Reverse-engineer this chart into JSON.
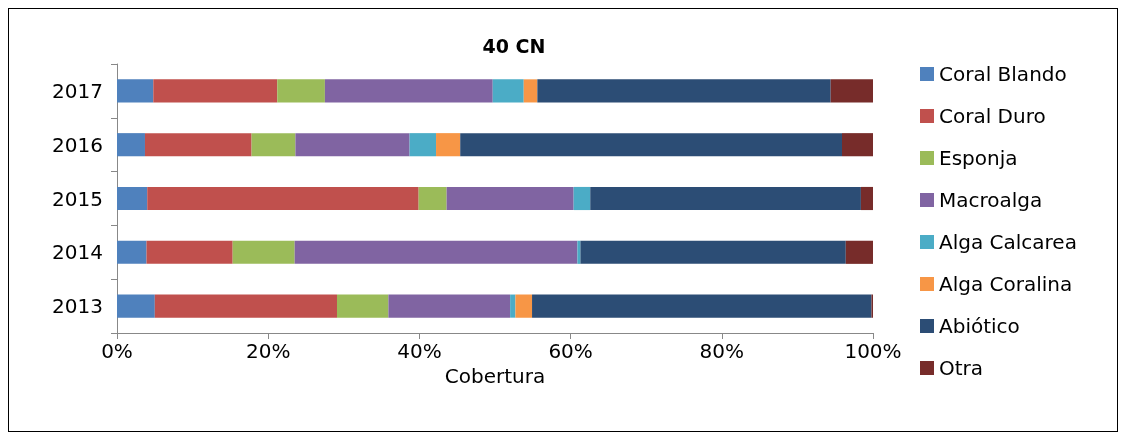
{
  "chart_data": {
    "type": "bar",
    "title": "40 CN",
    "xlabel": "Cobertura",
    "orientation": "horizontal",
    "stacked": true,
    "categories": [
      "2017",
      "2016",
      "2015",
      "2014",
      "2013"
    ],
    "series": [
      {
        "name": "Coral Blando",
        "color": "#4f81bd",
        "values": [
          4.8,
          3.7,
          4.0,
          3.9,
          5.0
        ]
      },
      {
        "name": "Coral Duro",
        "color": "#c0504d",
        "values": [
          16.4,
          14.1,
          35.9,
          11.4,
          24.1
        ]
      },
      {
        "name": "Esponja",
        "color": "#9bbb59",
        "values": [
          6.3,
          5.8,
          3.7,
          8.2,
          6.8
        ]
      },
      {
        "name": "Macroalga",
        "color": "#8064a2",
        "values": [
          22.2,
          15.1,
          16.8,
          37.4,
          16.1
        ]
      },
      {
        "name": "Alga Calcarea",
        "color": "#4bacc6",
        "values": [
          4.1,
          3.5,
          2.2,
          0.4,
          0.7
        ]
      },
      {
        "name": "Alga Coralina",
        "color": "#f79646",
        "values": [
          1.8,
          3.2,
          0,
          0,
          2.2
        ]
      },
      {
        "name": "Abiótico",
        "color": "#2c4d75",
        "values": [
          38.8,
          50.5,
          35.8,
          35.1,
          44.9
        ]
      },
      {
        "name": "Otra",
        "color": "#772c2a",
        "values": [
          5.6,
          4.1,
          1.6,
          3.6,
          0.2
        ]
      }
    ],
    "xlim": [
      0,
      100
    ],
    "xticks": [
      {
        "value": 0,
        "label": "0%"
      },
      {
        "value": 20,
        "label": "20%"
      },
      {
        "value": 40,
        "label": "40%"
      },
      {
        "value": 60,
        "label": "60%"
      },
      {
        "value": 80,
        "label": "80%"
      },
      {
        "value": 100,
        "label": "100%"
      }
    ],
    "grid": false,
    "legend": "right"
  }
}
